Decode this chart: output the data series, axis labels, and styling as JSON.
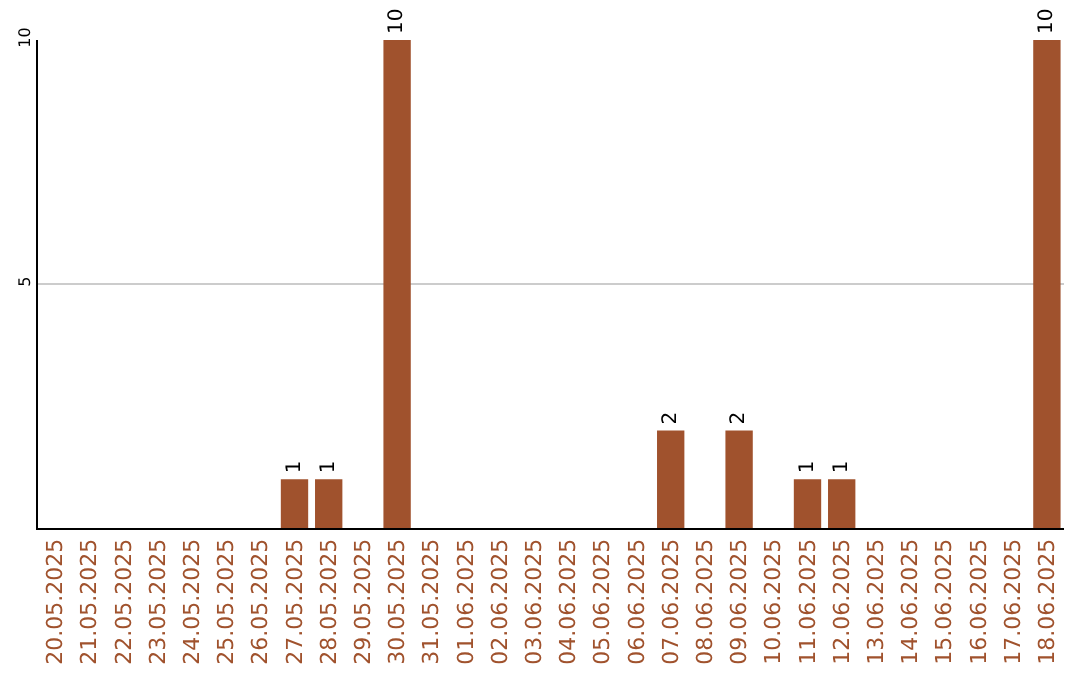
{
  "chart_data": {
    "type": "bar",
    "categories": [
      "20.05.2025",
      "21.05.2025",
      "22.05.2025",
      "23.05.2025",
      "24.05.2025",
      "25.05.2025",
      "26.05.2025",
      "27.05.2025",
      "28.05.2025",
      "29.05.2025",
      "30.05.2025",
      "31.05.2025",
      "01.06.2025",
      "02.06.2025",
      "03.06.2025",
      "04.06.2025",
      "05.06.2025",
      "06.06.2025",
      "07.06.2025",
      "08.06.2025",
      "09.06.2025",
      "10.06.2025",
      "11.06.2025",
      "12.06.2025",
      "13.06.2025",
      "14.06.2025",
      "15.06.2025",
      "16.06.2025",
      "17.06.2025",
      "18.06.2025"
    ],
    "values": [
      0,
      0,
      0,
      0,
      0,
      0,
      0,
      1,
      1,
      0,
      10,
      0,
      0,
      0,
      0,
      0,
      0,
      0,
      2,
      0,
      2,
      0,
      1,
      1,
      0,
      0,
      0,
      0,
      0,
      10
    ],
    "value_labels": [
      null,
      null,
      null,
      null,
      null,
      null,
      null,
      "1",
      "1",
      null,
      "10",
      null,
      null,
      null,
      null,
      null,
      null,
      null,
      "2",
      null,
      "2",
      null,
      "1",
      "1",
      null,
      null,
      null,
      null,
      null,
      "10"
    ],
    "color": "#a0522d",
    "ylim": [
      0,
      10
    ],
    "yticks": [
      5,
      10
    ],
    "grid": "y",
    "legend": false
  }
}
